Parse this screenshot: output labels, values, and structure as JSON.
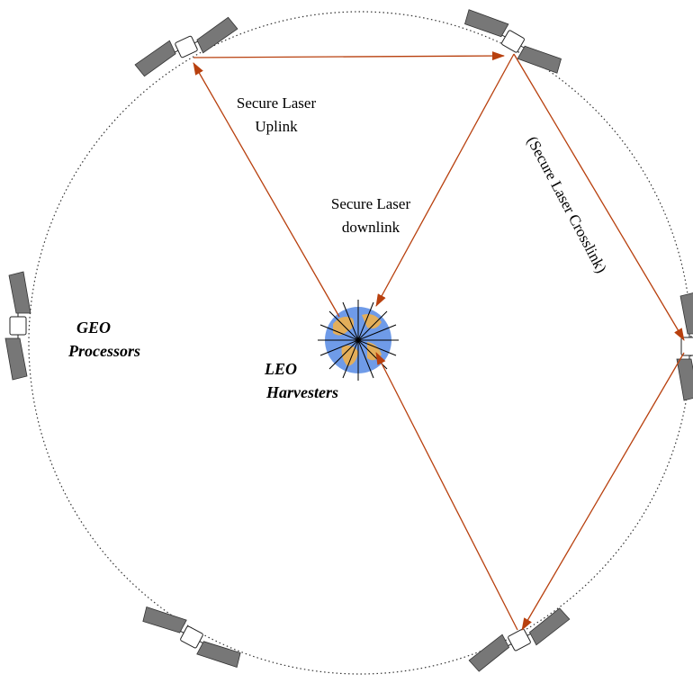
{
  "labels": {
    "uplink": [
      "Secure Laser",
      "Uplink"
    ],
    "downlink": [
      "Secure Laser",
      "downlink"
    ],
    "crosslink": "(Secure Laser Crosslink)",
    "geo": [
      "GEO",
      "Processors"
    ],
    "leo": [
      "LEO",
      "Harvesters"
    ]
  }
}
